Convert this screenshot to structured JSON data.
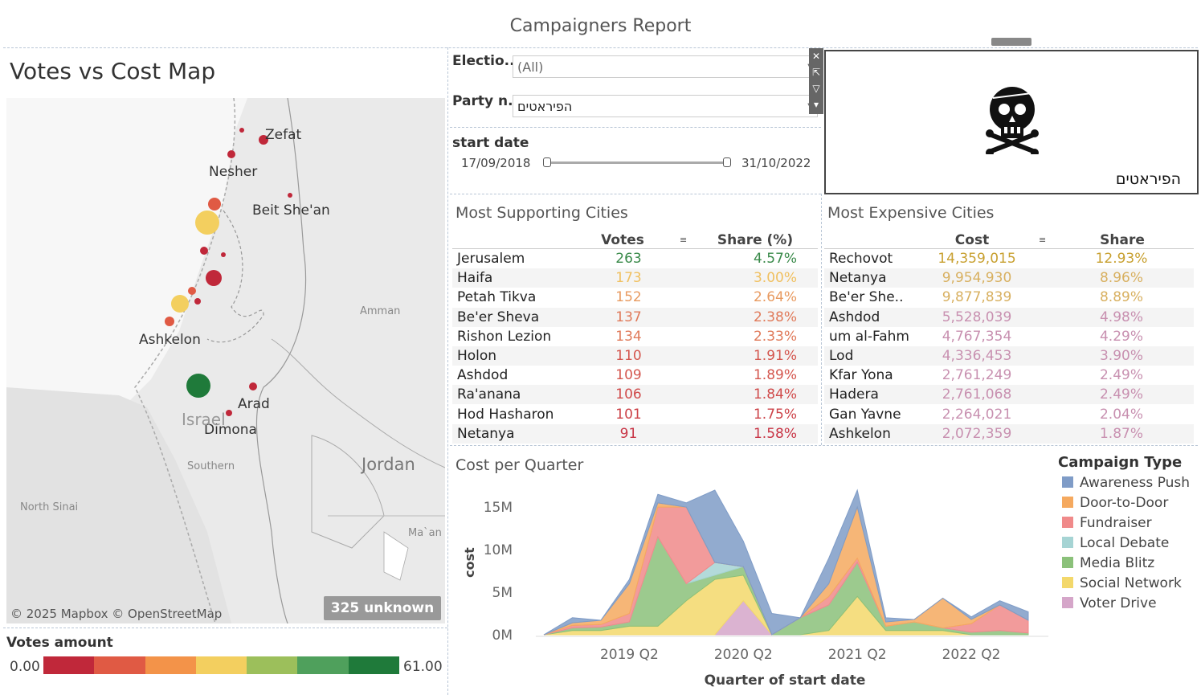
{
  "title": "Campaigners Report",
  "map": {
    "title": "Votes vs Cost Map",
    "cities": [
      "Zefat",
      "Nesher",
      "Beit She'an",
      "Ashkelon",
      "Arad",
      "Dimona"
    ],
    "regions": [
      "Amman",
      "Jordan",
      "Southern",
      "North Sinai",
      "Ma`an",
      "Israel"
    ],
    "unknown_badge": "325 unknown",
    "copyright": "© 2025 Mapbox © OpenStreetMap",
    "legend_title": "Votes amount",
    "legend_min": "0.00",
    "legend_max": "61.00",
    "legend_colors": [
      "#c0283a",
      "#e05a44",
      "#f39349",
      "#f3cf5f",
      "#9cbf5b",
      "#4fa05c",
      "#1f7a3a"
    ]
  },
  "filters": {
    "election_label": "Electio..",
    "election_value": "(All)",
    "party_label": "Party n..",
    "party_value": "הפיראטים",
    "start_label": "start date",
    "start_from": "17/09/2018",
    "start_to": "31/10/2022"
  },
  "logo": {
    "party_name": "הפיראטים",
    "icon": "skull-crossbones-icon"
  },
  "supporting": {
    "title": "Most Supporting Cities",
    "col_votes": "Votes",
    "col_share": "Share (%)",
    "rows": [
      {
        "city": "Jerusalem",
        "votes": "263",
        "share": "4.57%",
        "color": "#3a8a4a"
      },
      {
        "city": "Haifa",
        "votes": "173",
        "share": "3.00%",
        "color": "#f0c060"
      },
      {
        "city": "Petah Tikva",
        "votes": "152",
        "share": "2.64%",
        "color": "#e89a60"
      },
      {
        "city": "Be'er Sheva",
        "votes": "137",
        "share": "2.38%",
        "color": "#e07a5a"
      },
      {
        "city": "Rishon Lezion",
        "votes": "134",
        "share": "2.33%",
        "color": "#e07a5a"
      },
      {
        "city": "Holon",
        "votes": "110",
        "share": "1.91%",
        "color": "#d4564e"
      },
      {
        "city": "Ashdod",
        "votes": "109",
        "share": "1.89%",
        "color": "#d4564e"
      },
      {
        "city": "Ra'anana",
        "votes": "106",
        "share": "1.84%",
        "color": "#d04a4a"
      },
      {
        "city": "Hod Hasharon",
        "votes": "101",
        "share": "1.75%",
        "color": "#cc4248"
      },
      {
        "city": "Netanya",
        "votes": "91",
        "share": "1.58%",
        "color": "#c83445"
      }
    ]
  },
  "expensive": {
    "title": "Most Expensive Cities",
    "col_cost": "Cost",
    "col_share": "Share",
    "rows": [
      {
        "city": "Rechovot",
        "cost": "14,359,015",
        "share": "12.93%",
        "color": "#c8a030"
      },
      {
        "city": "Netanya",
        "cost": "9,954,930",
        "share": "8.96%",
        "color": "#d8b060"
      },
      {
        "city": "Be'er She..",
        "cost": "9,877,839",
        "share": "8.89%",
        "color": "#d8b060"
      },
      {
        "city": "Ashdod",
        "cost": "5,528,039",
        "share": "4.98%",
        "color": "#c890b0"
      },
      {
        "city": "um al-Fahm",
        "cost": "4,767,354",
        "share": "4.29%",
        "color": "#c890b0"
      },
      {
        "city": "Lod",
        "cost": "4,336,453",
        "share": "3.90%",
        "color": "#c890b0"
      },
      {
        "city": "Kfar Yona",
        "cost": "2,761,249",
        "share": "2.49%",
        "color": "#c890b0"
      },
      {
        "city": "Hadera",
        "cost": "2,761,068",
        "share": "2.49%",
        "color": "#c890b0"
      },
      {
        "city": "Gan Yavne",
        "cost": "2,264,021",
        "share": "2.04%",
        "color": "#c890b0"
      },
      {
        "city": "Ashkelon",
        "cost": "2,072,359",
        "share": "1.87%",
        "color": "#c890b0"
      }
    ]
  },
  "chart_data": {
    "type": "area",
    "title": "Cost per Quarter",
    "xlabel": "Quarter of start date",
    "ylabel": "cost",
    "ytick_labels": [
      "0M",
      "5M",
      "10M",
      "15M"
    ],
    "ytick_values": [
      0,
      5,
      10,
      15
    ],
    "ylim": [
      0,
      17
    ],
    "xtick_labels": [
      "2019 Q2",
      "2020 Q2",
      "2021 Q2",
      "2022 Q2"
    ],
    "xtick_index": [
      4,
      8,
      12,
      16
    ],
    "legend_title": "Campaign Type",
    "x": [
      "2018 Q3",
      "2018 Q4",
      "2019 Q1",
      "2019 Q2",
      "2019 Q3",
      "2019 Q4",
      "2020 Q1",
      "2020 Q2",
      "2020 Q3",
      "2020 Q4",
      "2021 Q1",
      "2021 Q2",
      "2021 Q3",
      "2021 Q4",
      "2022 Q1",
      "2022 Q2",
      "2022 Q3",
      "2022 Q4"
    ],
    "series": [
      {
        "name": "Voter Drive",
        "color": "#d5a6c9",
        "values": [
          0,
          0,
          0,
          0,
          0,
          0,
          0,
          4.0,
          0,
          0,
          0,
          0,
          0,
          0,
          0,
          0,
          0,
          0
        ]
      },
      {
        "name": "Social Network",
        "color": "#f3d86b",
        "values": [
          0,
          0.5,
          0.5,
          1,
          1,
          4,
          6.5,
          3,
          0,
          0,
          0.5,
          4.5,
          0.5,
          0.5,
          0.5,
          0,
          0,
          0
        ]
      },
      {
        "name": "Media Blitz",
        "color": "#8bc17a",
        "values": [
          0,
          0.3,
          0.4,
          0.5,
          10.5,
          2,
          0.5,
          1,
          0,
          2,
          3,
          4,
          0.5,
          1,
          0.3,
          0.3,
          0.5,
          0.2
        ]
      },
      {
        "name": "Local Debate",
        "color": "#a6d4d4",
        "values": [
          0,
          0,
          0,
          0,
          0,
          0,
          1.5,
          0,
          0,
          0,
          0,
          0,
          0,
          0,
          0,
          0,
          0,
          0
        ]
      },
      {
        "name": "Fundraiser",
        "color": "#f08a8a",
        "values": [
          0,
          0.3,
          0.3,
          1,
          3.5,
          9,
          0,
          0,
          0,
          0,
          1,
          0.5,
          0,
          0,
          0,
          1,
          3,
          1.5
        ]
      },
      {
        "name": "Door-to-Door",
        "color": "#f5a95f",
        "values": [
          0,
          0.3,
          0.5,
          3.5,
          0.5,
          0,
          0,
          0,
          0,
          0,
          1.5,
          6,
          0.5,
          0.3,
          3.5,
          0.5,
          0,
          0
        ]
      },
      {
        "name": "Awareness Push",
        "color": "#7f9cc7",
        "values": [
          0,
          0.6,
          0,
          0.5,
          1,
          0.5,
          8.5,
          3,
          2.5,
          0,
          3,
          2,
          0.5,
          0,
          0,
          0.3,
          0.5,
          1
        ]
      }
    ]
  }
}
